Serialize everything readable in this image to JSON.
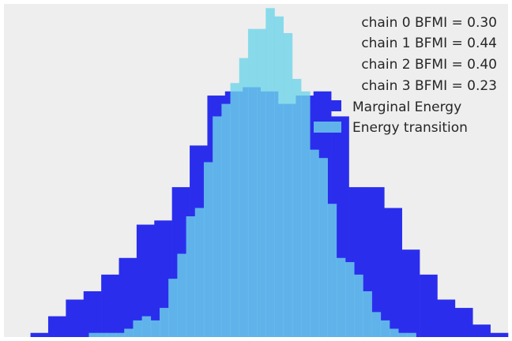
{
  "chart_data": {
    "type": "bar",
    "title": "",
    "xlabel": "",
    "ylabel": "",
    "grid": false,
    "axes_visible": false,
    "legend_position": "top-right",
    "bfmi_labels": [
      "chain  0 BFMI = 0.30",
      "chain  1 BFMI = 0.44",
      "chain  2 BFMI = 0.40",
      "chain  3 BFMI = 0.23"
    ],
    "series": [
      {
        "name": "Marginal Energy",
        "color": "#2a2eec",
        "opacity": 1.0,
        "x_start": 0.0,
        "bin_width": 1.0,
        "values": [
          1,
          5,
          9,
          11,
          15,
          19,
          27,
          28,
          36,
          46,
          58,
          59,
          60,
          59,
          56,
          58,
          59,
          53,
          36,
          36,
          31,
          21,
          15,
          9,
          7,
          3,
          1
        ]
      },
      {
        "name": "Energy transition",
        "color": "#6ed5ea",
        "opacity": 0.8,
        "x_start": 3.3,
        "bin_width": 0.5,
        "values": [
          1,
          1,
          1,
          1,
          2,
          4,
          5,
          4,
          7,
          14,
          20,
          29,
          31,
          42,
          53,
          56,
          61,
          67,
          74,
          74,
          79,
          77,
          73,
          62,
          59,
          45,
          43,
          32,
          19,
          18,
          15,
          11,
          6,
          4,
          2,
          1,
          1
        ]
      }
    ],
    "xlim": [
      -1.5,
      27.0
    ],
    "ylim": [
      0,
      80
    ]
  }
}
